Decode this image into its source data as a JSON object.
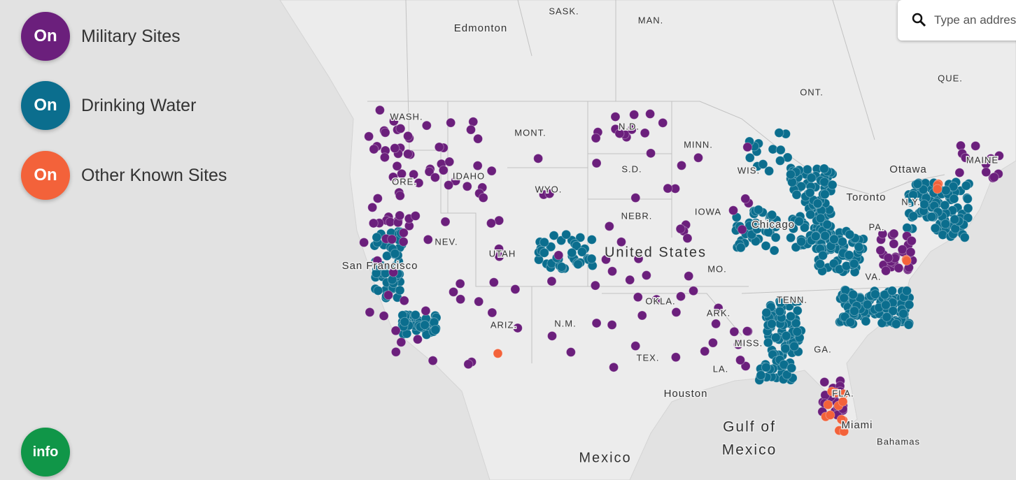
{
  "layers": [
    {
      "state": "On",
      "label": "Military Sites"
    },
    {
      "state": "On",
      "label": "Drinking Water"
    },
    {
      "state": "On",
      "label": "Other Known Sites"
    }
  ],
  "info_button": "info",
  "search_placeholder": "Type an address",
  "map_labels": [
    "SASK.",
    "MAN.",
    "Edmonton",
    "QUE.",
    "ONT.",
    "Ottawa",
    "Toronto",
    "MAINE",
    "WASH.",
    "MONT.",
    "N.D.",
    "MINN.",
    "WIS.",
    "S.D.",
    "ORE.",
    "IDAHO",
    "WYO.",
    "NEBR.",
    "IOWA",
    "Chicago",
    "NEV.",
    "UTAH",
    "United States",
    "San Francisco",
    "MO.",
    "ARIZ.",
    "N.M.",
    "OKLA.",
    "ARK.",
    "TENN.",
    "MISS.",
    "GA.",
    "TEX.",
    "LA.",
    "Houston",
    "FLA.",
    "Miami",
    "Gulf of",
    "Mexico",
    "Mexico",
    "Bahamas",
    "N.Y.",
    "PA.",
    "VA."
  ]
}
